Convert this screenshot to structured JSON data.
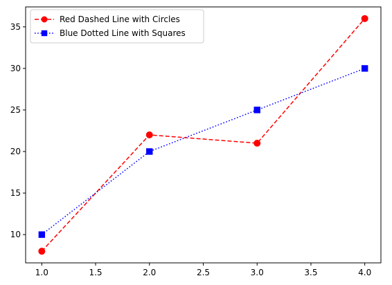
{
  "chart_data": {
    "type": "line",
    "title": "",
    "xlabel": "",
    "ylabel": "",
    "xlim": [
      0.85,
      4.15
    ],
    "ylim": [
      6.6,
      37.4
    ],
    "xticks": [
      1.0,
      1.5,
      2.0,
      2.5,
      3.0,
      3.5,
      4.0
    ],
    "xtick_labels": [
      "1.0",
      "1.5",
      "2.0",
      "2.5",
      "3.0",
      "3.5",
      "4.0"
    ],
    "yticks": [
      10,
      15,
      20,
      25,
      30,
      35
    ],
    "ytick_labels": [
      "10",
      "15",
      "20",
      "25",
      "30",
      "35"
    ],
    "grid": false,
    "legend_position": "upper-left",
    "series": [
      {
        "name": "Red Dashed Line with Circles",
        "color": "#ff0000",
        "line_style": "dashed",
        "marker": "circle",
        "x": [
          1,
          2,
          3,
          4
        ],
        "y": [
          8,
          22,
          21,
          36
        ]
      },
      {
        "name": "Blue Dotted Line with Squares",
        "color": "#0000ff",
        "line_style": "dotted",
        "marker": "square",
        "x": [
          1,
          2,
          3,
          4
        ],
        "y": [
          10,
          20,
          25,
          30
        ]
      }
    ]
  }
}
